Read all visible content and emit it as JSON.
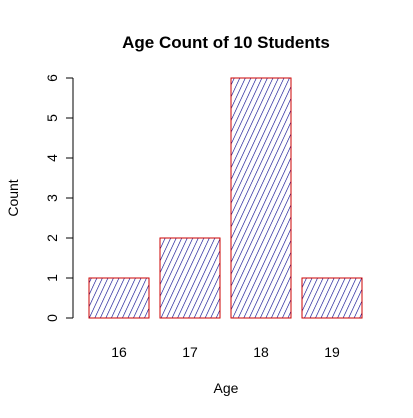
{
  "chart_data": {
    "type": "bar",
    "title": "Age Count of 10 Students",
    "xlabel": "Age",
    "ylabel": "Count",
    "categories": [
      "16",
      "17",
      "18",
      "19"
    ],
    "values": [
      1,
      2,
      6,
      1
    ],
    "ylim": [
      0,
      6
    ],
    "yticks": [
      0,
      1,
      2,
      3,
      4,
      5,
      6
    ],
    "grid": false,
    "bar_fill": "hatched",
    "hatch_color": "#00008b",
    "bar_border_color": "#cc0000"
  }
}
